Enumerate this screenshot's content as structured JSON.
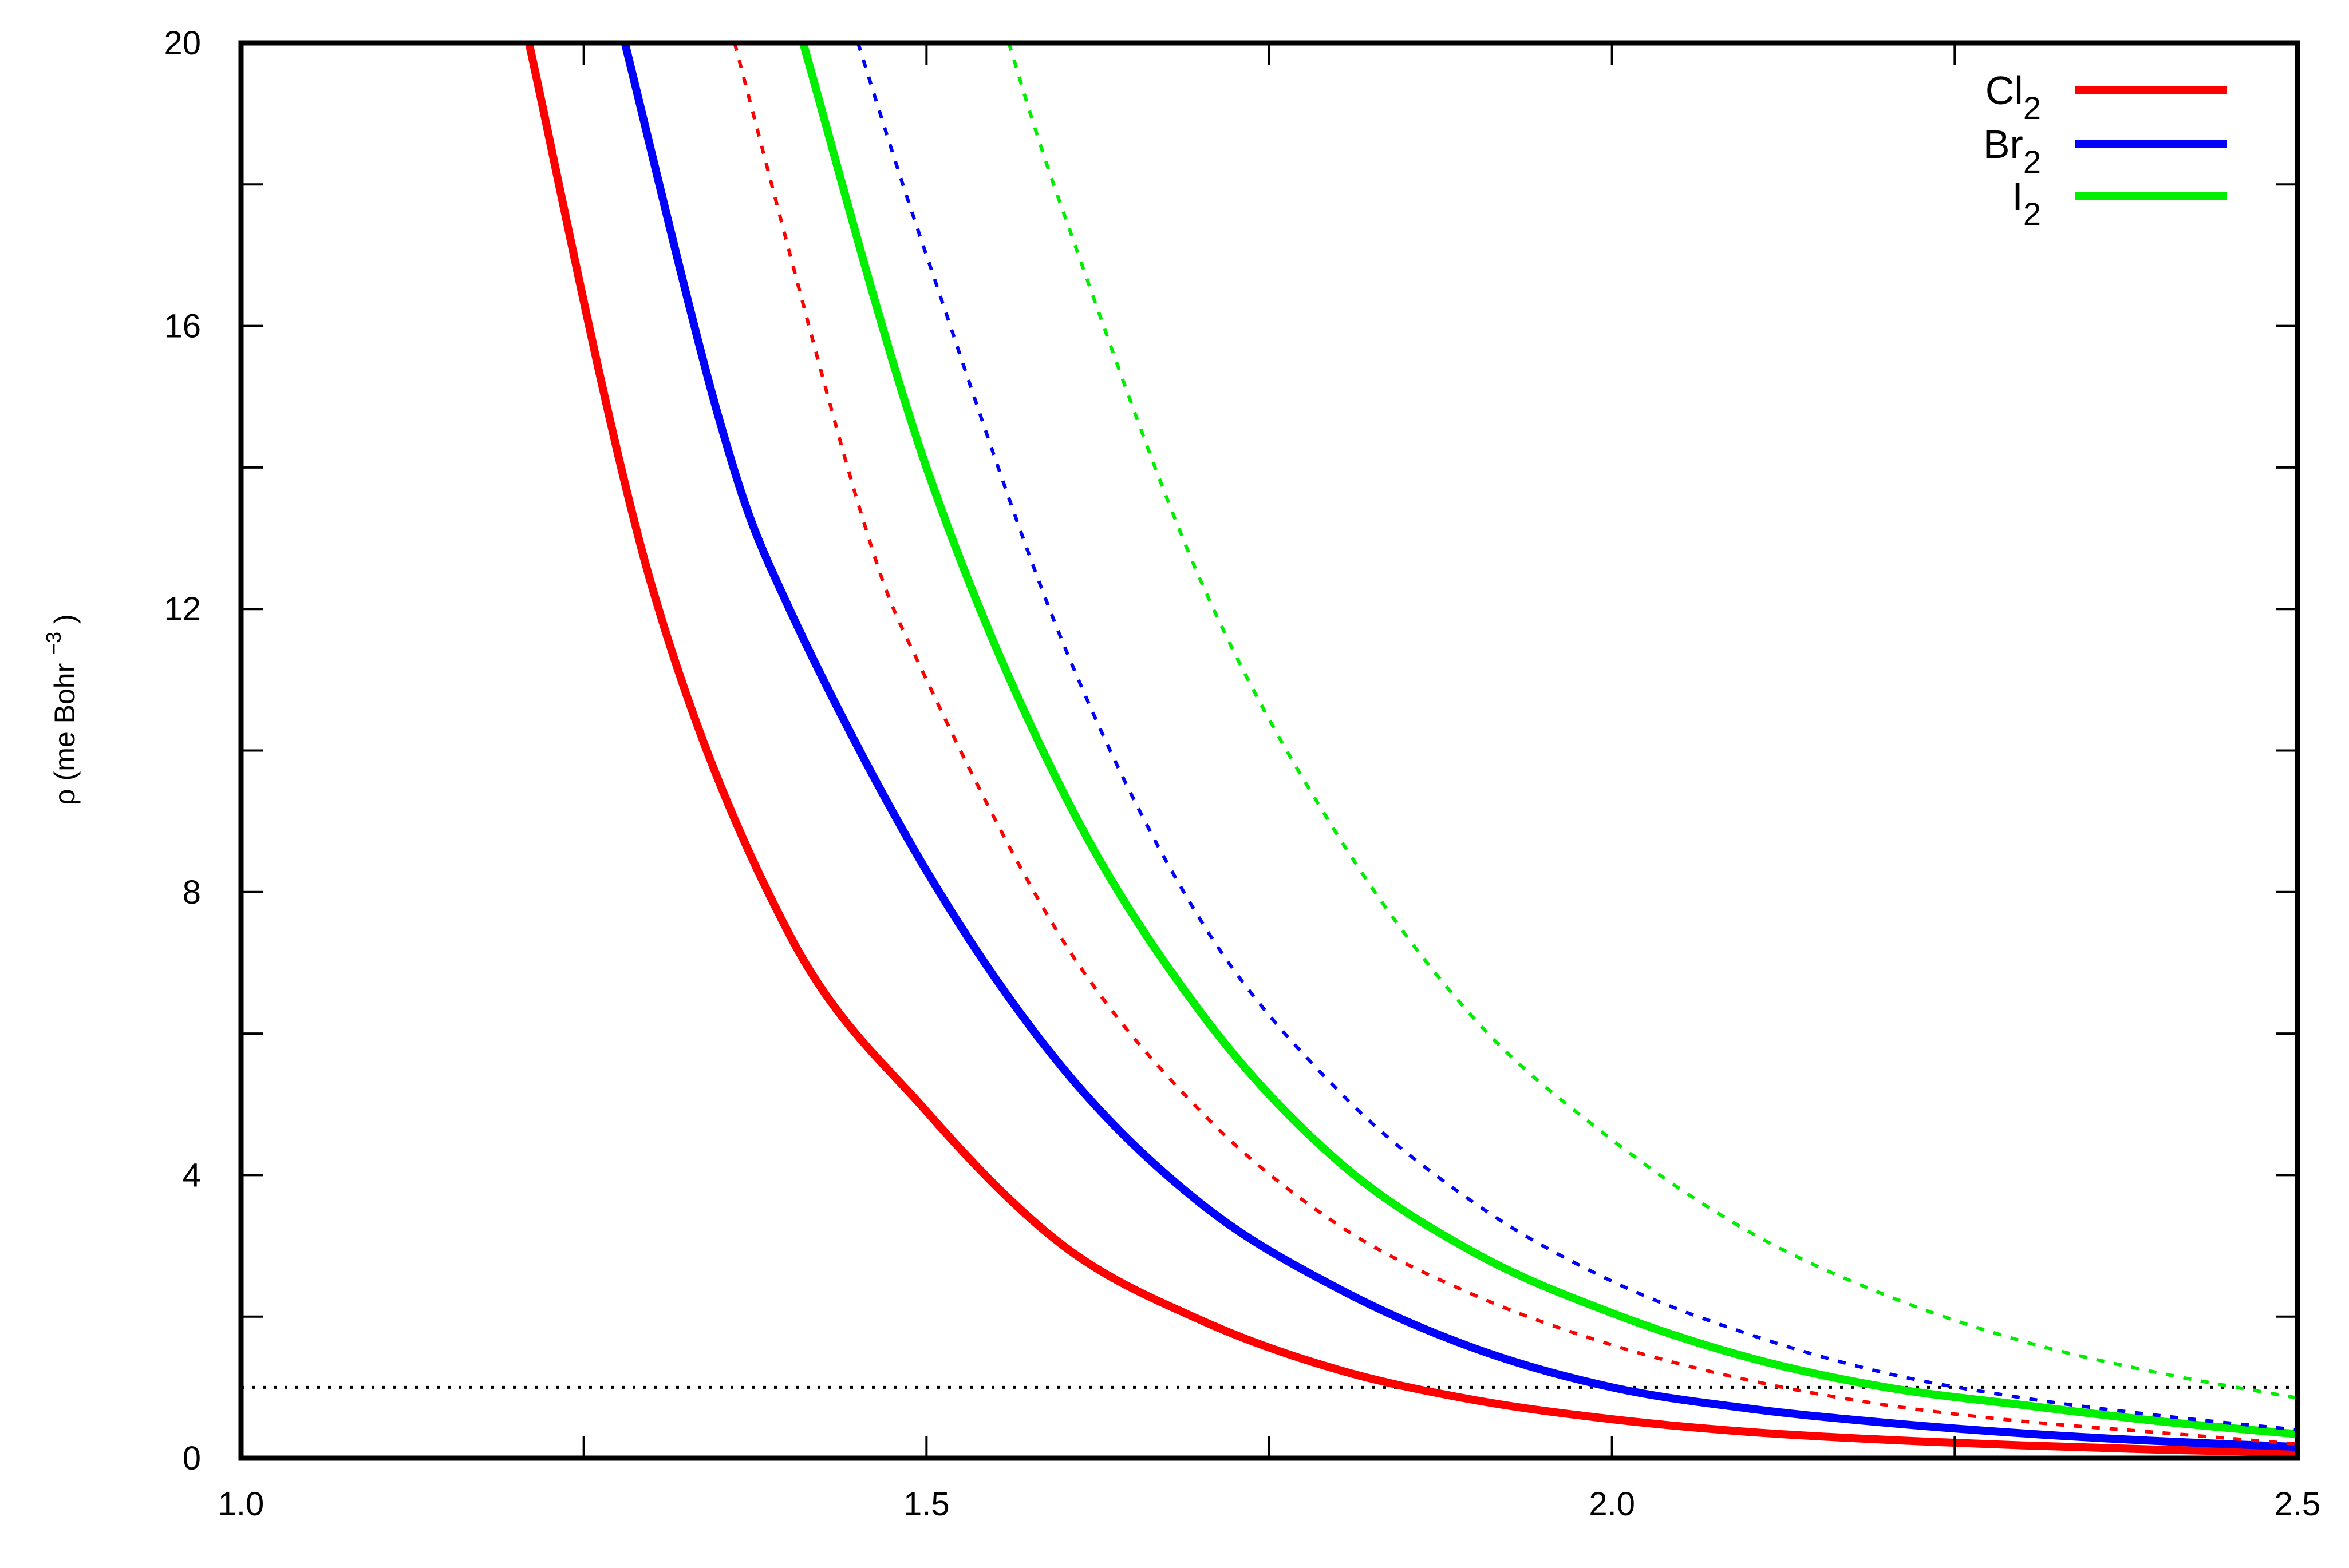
{
  "chart_data": {
    "type": "line",
    "title": "",
    "xlabel": "",
    "ylabel": {
      "base": "ρ  (me Bohr",
      "exp": "−3",
      "close": ")"
    },
    "xlim": [
      1.0,
      2.5
    ],
    "ylim": [
      0,
      20
    ],
    "x_ticks": [
      1.0,
      1.5,
      2.0,
      2.5
    ],
    "x_tick_labels": [
      "1.0",
      "1.5",
      "2.0",
      "2.5"
    ],
    "x_minor_ticks": [
      1.25,
      1.75,
      2.25
    ],
    "y_ticks": [
      0,
      4,
      8,
      12,
      16,
      20
    ],
    "y_tick_labels": [
      "0",
      "4",
      "8",
      "12",
      "16",
      "20"
    ],
    "y_minor_ticks": [
      2,
      6,
      10,
      14,
      18
    ],
    "grid": false,
    "legend": {
      "placement": "top-right",
      "entries": [
        {
          "base": "Cl",
          "sub": "2",
          "color": "#ff0000"
        },
        {
          "base": "Br",
          "sub": "2",
          "color": "#0000ff"
        },
        {
          "base": "I",
          "sub": "2",
          "color": "#00ee00"
        }
      ]
    },
    "reference_line": {
      "y": 1.0,
      "style": "dotted",
      "color": "#000000"
    },
    "series": [
      {
        "name": "Cl2",
        "style": "solid",
        "color": "#ff0000",
        "x": [
          1.21,
          1.3,
          1.4,
          1.5,
          1.6,
          1.7,
          1.8,
          1.9,
          2.0,
          2.1,
          2.2,
          2.3,
          2.4,
          2.5
        ],
        "y": [
          20.0,
          12.3,
          7.4,
          4.9,
          3.0,
          1.95,
          1.25,
          0.82,
          0.55,
          0.37,
          0.26,
          0.18,
          0.12,
          0.08
        ]
      },
      {
        "name": "Br2",
        "style": "solid",
        "color": "#0000ff",
        "x": [
          1.28,
          1.35,
          1.4,
          1.5,
          1.6,
          1.7,
          1.8,
          1.9,
          2.0,
          2.1,
          2.2,
          2.3,
          2.4,
          2.5
        ],
        "y": [
          20.0,
          14.6,
          12.0,
          8.3,
          5.5,
          3.6,
          2.4,
          1.55,
          1.0,
          0.7,
          0.5,
          0.35,
          0.24,
          0.16
        ]
      },
      {
        "name": "I2",
        "style": "solid",
        "color": "#00ee00",
        "x": [
          1.41,
          1.5,
          1.6,
          1.7,
          1.8,
          1.9,
          2.0,
          2.1,
          2.2,
          2.3,
          2.4,
          2.5
        ],
        "y": [
          20.0,
          14.0,
          9.4,
          6.3,
          4.2,
          2.9,
          2.05,
          1.42,
          1.0,
          0.75,
          0.52,
          0.34
        ]
      },
      {
        "name": "Cl2",
        "style": "dotted",
        "color": "#ff0000",
        "x": [
          1.36,
          1.45,
          1.5,
          1.6,
          1.7,
          1.8,
          1.9,
          2.0,
          2.1,
          2.2,
          2.3,
          2.4,
          2.5
        ],
        "y": [
          20.0,
          13.5,
          11.0,
          7.3,
          4.9,
          3.3,
          2.3,
          1.6,
          1.1,
          0.75,
          0.52,
          0.36,
          0.2
        ]
      },
      {
        "name": "Br2",
        "style": "dotted",
        "color": "#0000ff",
        "x": [
          1.45,
          1.5,
          1.6,
          1.7,
          1.8,
          1.9,
          2.0,
          2.1,
          2.2,
          2.3,
          2.4,
          2.5
        ],
        "y": [
          20.0,
          17.0,
          11.5,
          7.6,
          5.2,
          3.6,
          2.5,
          1.75,
          1.2,
          0.85,
          0.6,
          0.4
        ]
      },
      {
        "name": "I2",
        "style": "dotted",
        "color": "#00ee00",
        "x": [
          1.56,
          1.6,
          1.7,
          1.8,
          1.9,
          2.0,
          2.1,
          2.2,
          2.3,
          2.4,
          2.5
        ],
        "y": [
          20.0,
          17.6,
          12.4,
          8.8,
          6.2,
          4.5,
          3.2,
          2.3,
          1.65,
          1.2,
          0.85
        ]
      }
    ]
  }
}
